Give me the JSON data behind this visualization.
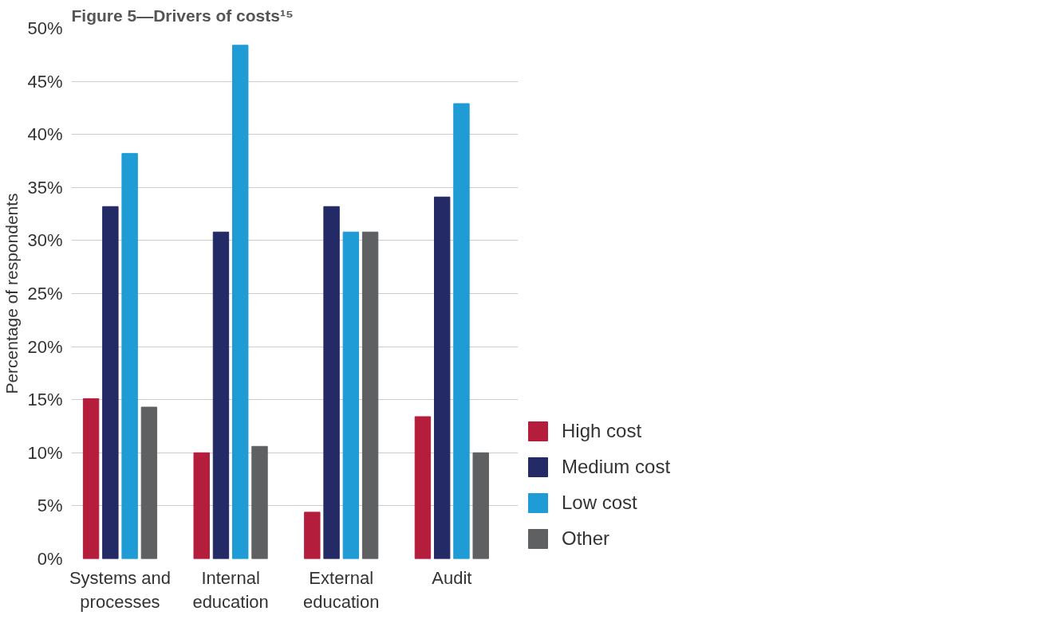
{
  "chart_data": {
    "type": "bar",
    "title": "Figure 5—Drivers of costs¹⁵",
    "ylabel": "Percentage of respondents",
    "categories": [
      "Systems and processes",
      "Internal education",
      "External education",
      "Audit"
    ],
    "series": [
      {
        "name": "High cost",
        "color": "#b41e3c",
        "values": [
          15.1,
          10.0,
          4.4,
          13.4
        ]
      },
      {
        "name": "Medium cost",
        "color": "#232a66",
        "values": [
          33.2,
          30.8,
          33.2,
          34.1
        ]
      },
      {
        "name": "Low cost",
        "color": "#1f9bd5",
        "values": [
          38.2,
          48.4,
          30.8,
          42.9
        ]
      },
      {
        "name": "Other",
        "color": "#5f6062",
        "values": [
          14.3,
          10.6,
          30.8,
          10.0
        ]
      }
    ],
    "ylim": [
      0,
      50
    ],
    "yticks": [
      {
        "value": 0,
        "label": "0%"
      },
      {
        "value": 5,
        "label": "5%"
      },
      {
        "value": 10,
        "label": "10%"
      },
      {
        "value": 15,
        "label": "15%"
      },
      {
        "value": 20,
        "label": "20%"
      },
      {
        "value": 25,
        "label": "25%"
      },
      {
        "value": 30,
        "label": "30%"
      },
      {
        "value": 35,
        "label": "35%"
      },
      {
        "value": 40,
        "label": "40%"
      },
      {
        "value": 45,
        "label": "45%"
      },
      {
        "value": 50,
        "label": "50%"
      }
    ],
    "grid": "y",
    "legend": "right"
  }
}
